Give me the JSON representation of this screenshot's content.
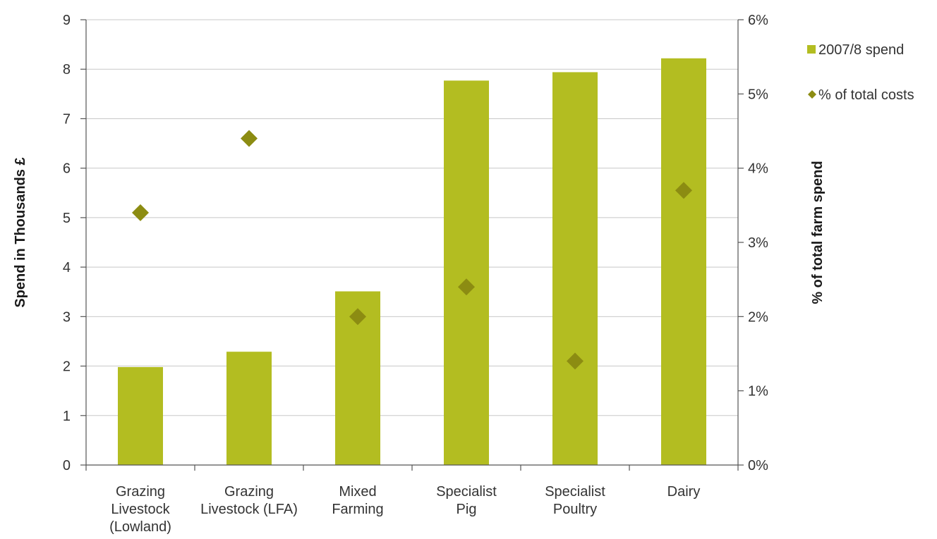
{
  "chart_data": {
    "type": "bar",
    "categories": [
      [
        "Grazing",
        "Livestock",
        "(Lowland)"
      ],
      [
        "Grazing",
        "Livestock (LFA)"
      ],
      [
        "Mixed",
        "Farming"
      ],
      [
        "Specialist",
        "Pig"
      ],
      [
        "Specialist",
        "Poultry"
      ],
      [
        "Dairy"
      ]
    ],
    "series": [
      {
        "name": "2007/8 spend",
        "kind": "bar",
        "axis": "left",
        "values": [
          1.98,
          2.29,
          3.51,
          7.77,
          7.94,
          8.22
        ]
      },
      {
        "name": "% of total costs",
        "kind": "scatter",
        "marker": "diamond",
        "axis": "right",
        "values": [
          3.4,
          4.4,
          2.0,
          2.4,
          1.4,
          3.7
        ]
      }
    ],
    "ylabel": "Spend in Thousands £",
    "y2label": "% of total farm spend",
    "ylim": [
      0,
      9
    ],
    "y2lim": [
      0,
      6
    ],
    "yticks": [
      "0",
      "1",
      "2",
      "3",
      "4",
      "5",
      "6",
      "7",
      "8",
      "9"
    ],
    "y2ticks": [
      "0%",
      "1%",
      "2%",
      "3%",
      "4%",
      "5%",
      "6%"
    ],
    "grid": true,
    "legend_position": "right",
    "colors": {
      "bar": "#b3bd21",
      "marker": "#8c8c12",
      "axis": "#555555",
      "grid": "#c8c8c8"
    }
  }
}
